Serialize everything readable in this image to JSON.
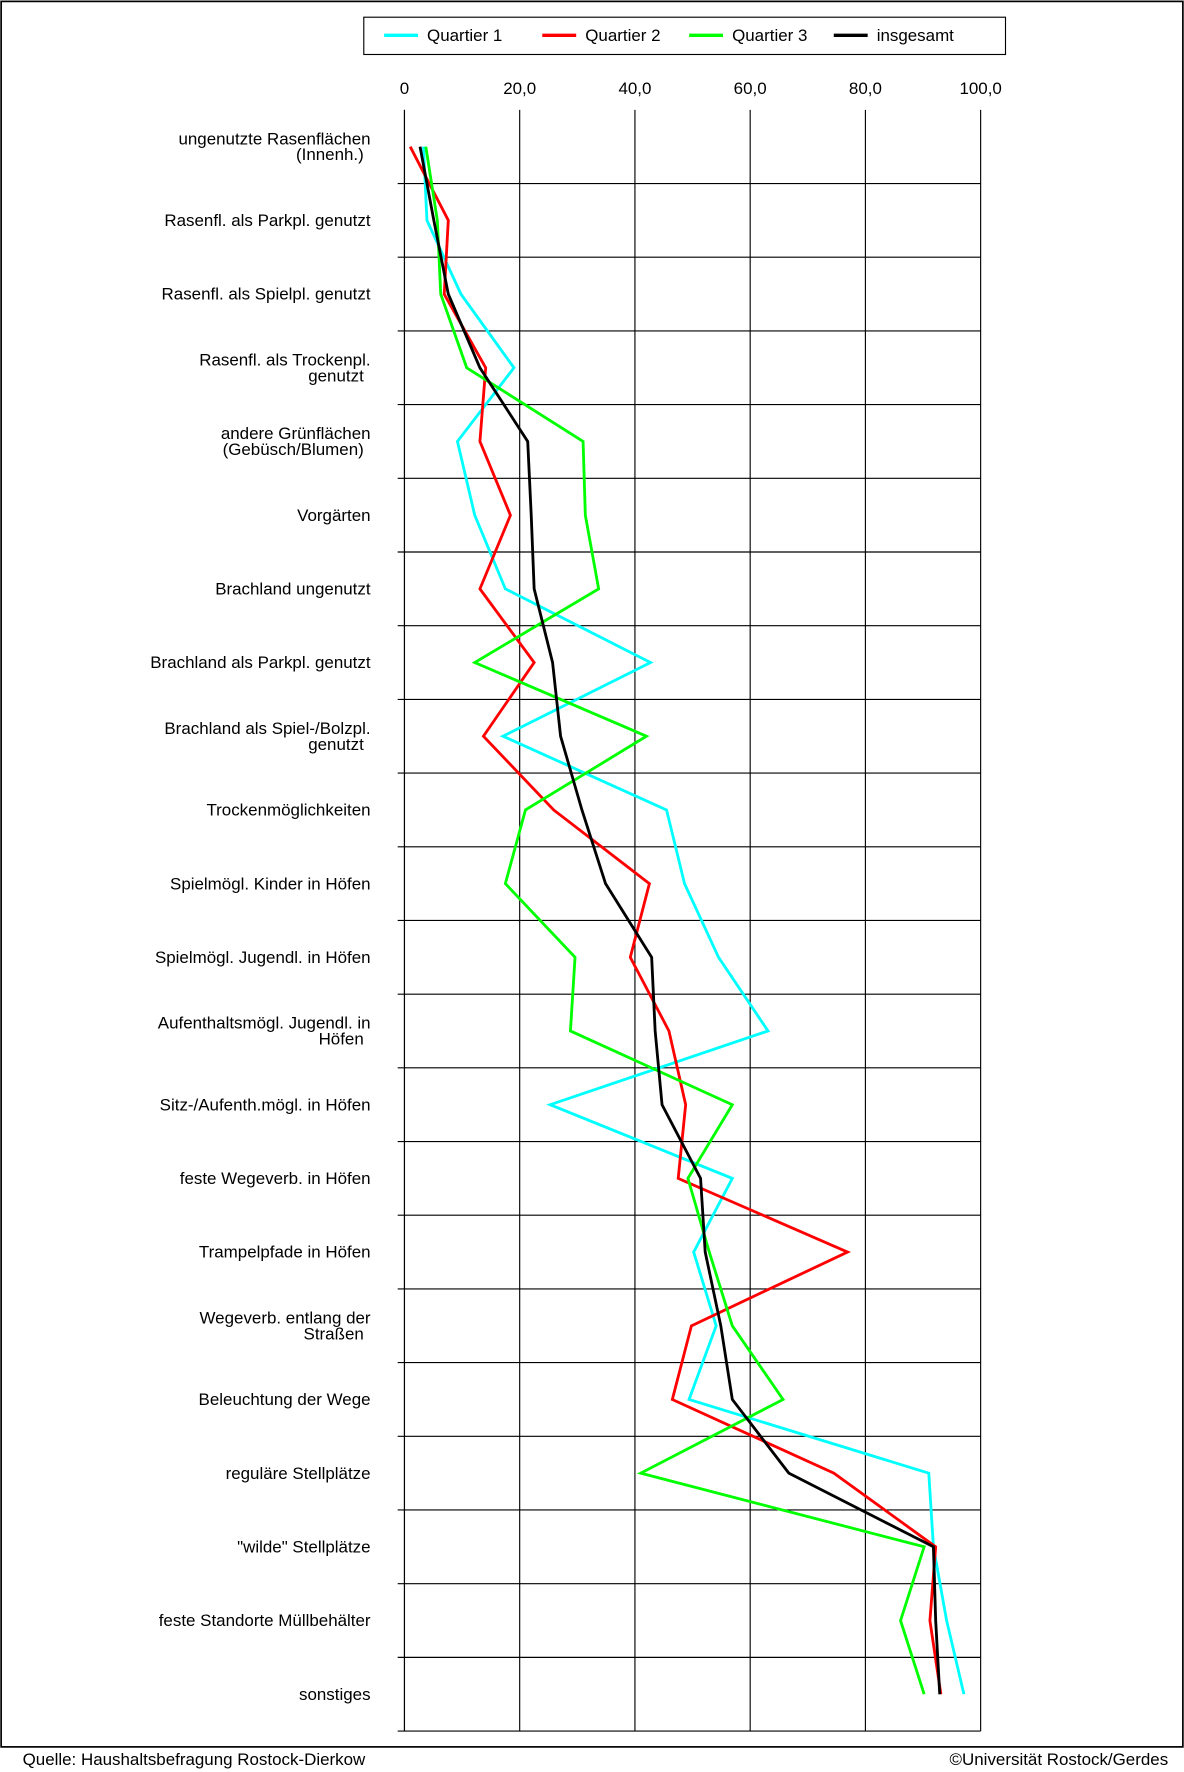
{
  "chart_data": {
    "type": "line",
    "orientation": "horizontal",
    "categories": [
      "ungenutzte Rasenflächen\n(Innenh.)",
      "Rasenfl. als Parkpl. genutzt",
      "Rasenfl. als Spielpl. genutzt",
      "Rasenfl. als Trockenpl.\ngenutzt",
      "andere Grünflächen\n(Gebüsch/Blumen)",
      "Vorgärten",
      "Brachland ungenutzt",
      "Brachland als Parkpl. genutzt",
      "Brachland als Spiel-/Bolzpl.\ngenutzt",
      "Trockenmöglichkeiten",
      "Spielmögl. Kinder in Höfen",
      "Spielmögl. Jugendl. in Höfen",
      "Aufenthaltsmögl. Jugendl. in\nHöfen",
      "Sitz-/Aufenth.mögl. in Höfen",
      "feste Wegeverb. in Höfen",
      "Trampelpfade in Höfen",
      "Wegeverb. entlang der\nStraßen",
      "Beleuchtung der Wege",
      "reguläre Stellplätze",
      "\"wilde\" Stellplätze",
      "feste Standorte Müllbehälter",
      "sonstiges"
    ],
    "series": [
      {
        "name": "Quartier 1",
        "color": "#00ffff",
        "values": [
          3.3,
          3.9,
          9.8,
          19,
          9.2,
          12.2,
          17.5,
          42.7,
          17.1,
          45.5,
          48.6,
          54.5,
          63.1,
          25.3,
          56.9,
          50.2,
          54.1,
          49.4,
          91,
          91.8,
          94.1,
          97.1
        ]
      },
      {
        "name": "Quartier 2",
        "color": "#ff0000",
        "values": [
          1,
          7.6,
          6.9,
          14.1,
          13.1,
          18.4,
          13.1,
          22.5,
          13.7,
          25.9,
          42.5,
          39.2,
          45.9,
          48.8,
          47.5,
          76.9,
          49.8,
          46.5,
          74.5,
          92.2,
          91.2,
          93.1
        ]
      },
      {
        "name": "Quartier 3",
        "color": "#00ff00",
        "values": [
          3.7,
          5.7,
          6.3,
          10.8,
          31,
          31.4,
          33.7,
          12.2,
          42,
          21,
          17.5,
          29.6,
          28.8,
          56.9,
          49.2,
          52.9,
          56.9,
          65.7,
          41,
          90.2,
          86.1,
          90.2
        ]
      },
      {
        "name": "insgesamt",
        "color": "#000000",
        "values": [
          2.7,
          5.1,
          7.6,
          13.1,
          21.4,
          22,
          22.5,
          25.7,
          27.1,
          30.8,
          34.9,
          42.9,
          43.5,
          44.7,
          51.4,
          52.2,
          54.9,
          56.9,
          66.7,
          91.8,
          92.2,
          92.9
        ]
      }
    ],
    "xlim": [
      0,
      100
    ],
    "xticks": [
      0,
      {
        "value": 20,
        "label": "20,0"
      },
      {
        "value": 40,
        "label": "40,0"
      },
      {
        "value": 60,
        "label": "60,0"
      },
      {
        "value": 80,
        "label": "80,0"
      },
      {
        "value": 100,
        "label": "100,0"
      }
    ],
    "grid": true,
    "legend": "top",
    "source": "Quelle: Haushaltsbefragung Rostock-Dierkow",
    "copyright": "©Universität Rostock/Gerdes"
  }
}
